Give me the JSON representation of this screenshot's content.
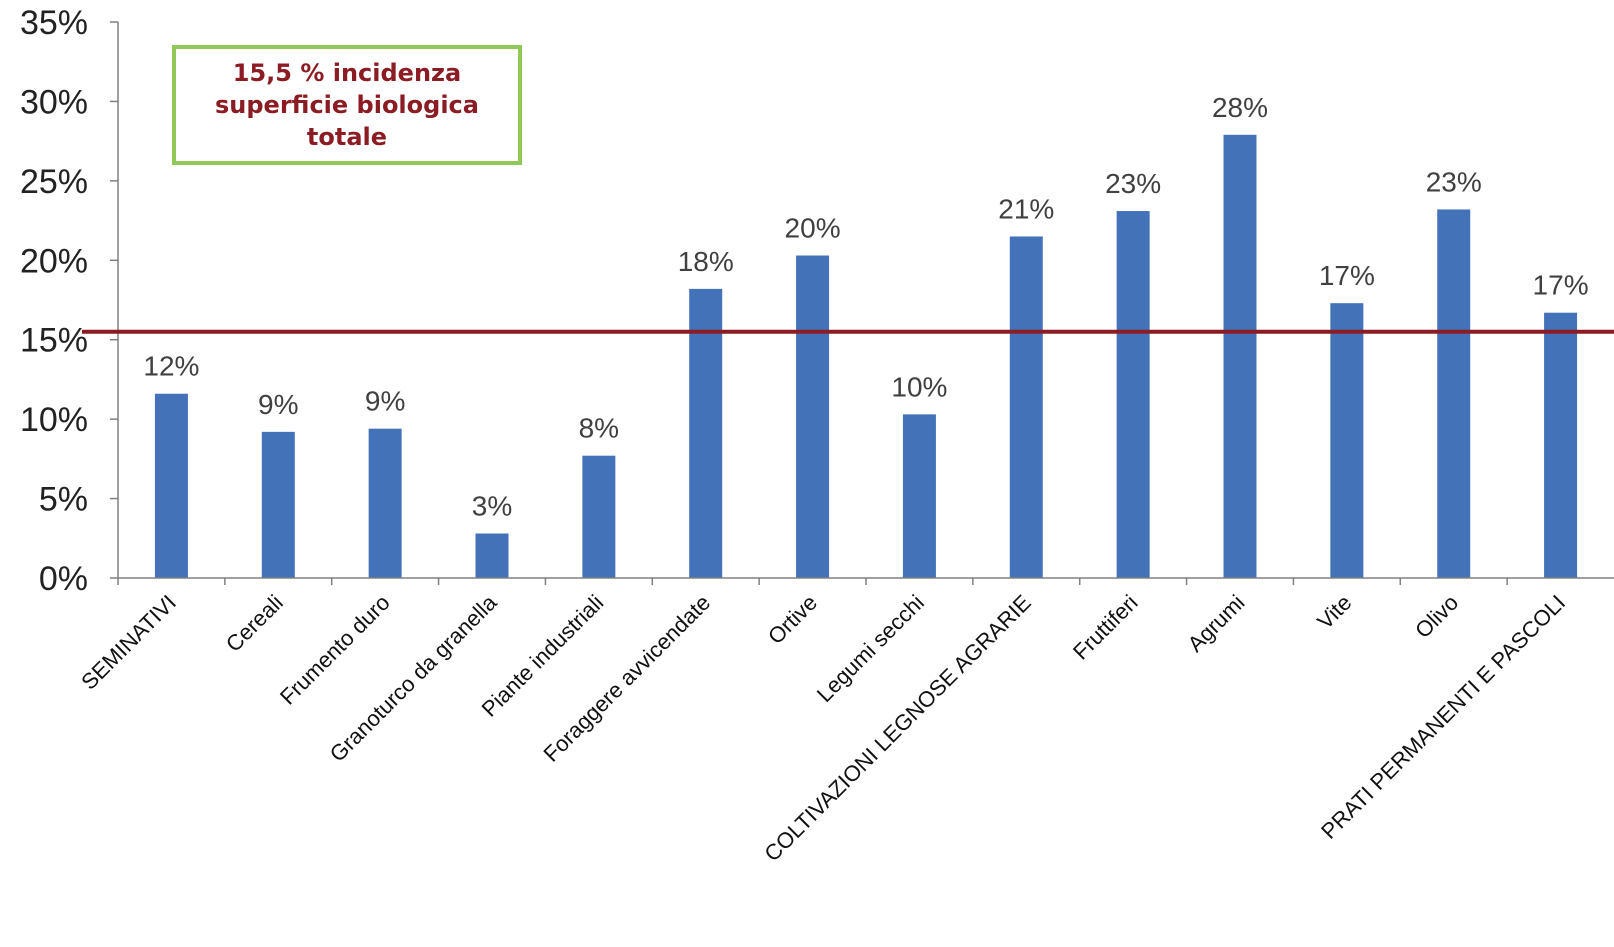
{
  "chart_data": {
    "type": "bar",
    "categories": [
      "SEMINATIVI",
      "Cereali",
      "Frumento duro",
      "Granoturco da granella",
      "Piante industriali",
      "Foraggere avvicendate",
      "Ortive",
      "Legumi secchi",
      "COLTIVAZIONI LEGNOSE AGRARIE",
      "Fruttiferi",
      "Agrumi",
      "Vite",
      "Olivo",
      "PRATI PERMANENTI E PASCOLI"
    ],
    "values": [
      11.6,
      9.2,
      9.4,
      2.8,
      7.7,
      18.2,
      20.3,
      10.3,
      21.5,
      23.1,
      27.9,
      17.3,
      23.2,
      16.7
    ],
    "data_labels": [
      "12%",
      "9%",
      "9%",
      "3%",
      "8%",
      "18%",
      "20%",
      "10%",
      "21%",
      "23%",
      "28%",
      "17%",
      "23%",
      "17%"
    ],
    "ylim": [
      0,
      35
    ],
    "yticks": [
      0,
      5,
      10,
      15,
      20,
      25,
      30,
      35
    ],
    "ytick_labels": [
      "0%",
      "5%",
      "10%",
      "15%",
      "20%",
      "25%",
      "30%",
      "35%"
    ],
    "reference_line": 15.5,
    "annotation": "15,5 % incidenza superficie biologica totale",
    "grid": false,
    "legend": "none",
    "colors": {
      "bar": "#4472b8",
      "reference_line": "#8b1c23",
      "annotation_border": "#92c85a",
      "annotation_text": "#8b1c23"
    }
  }
}
